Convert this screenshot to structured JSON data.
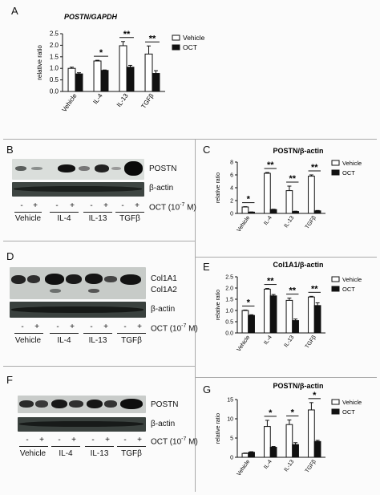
{
  "figure": {
    "panel_a": {
      "letter": "A"
    },
    "panel_b": {
      "letter": "B",
      "blot_labels": [
        "POSTN",
        "β-actin"
      ],
      "treatment_label": "OCT (10",
      "treatment_exp": "-7",
      "treatment_unit": " M)",
      "signs": [
        "-",
        "+",
        "-",
        "+",
        "-",
        "+",
        "-",
        "+"
      ],
      "lane_labels": [
        "Vehicle",
        "IL-4",
        "IL-13",
        "TGFβ"
      ]
    },
    "panel_c": {
      "letter": "C"
    },
    "panel_d": {
      "letter": "D",
      "blot_labels": [
        "Col1A1",
        "Col1A2",
        "β-actin"
      ],
      "treatment_label": "OCT (10",
      "treatment_exp": "-7",
      "treatment_unit": " M)",
      "signs": [
        "-",
        "+",
        "-",
        "+",
        "-",
        "+",
        "-",
        "+"
      ],
      "lane_labels": [
        "Vehicle",
        "IL-4",
        "IL-13",
        "TGFβ"
      ]
    },
    "panel_e": {
      "letter": "E"
    },
    "panel_f": {
      "letter": "F",
      "blot_labels": [
        "POSTN",
        "β-actin"
      ],
      "treatment_label": "OCT (10",
      "treatment_exp": "-7",
      "treatment_unit": " M)",
      "signs": [
        "-",
        "+",
        "-",
        "+",
        "-",
        "+",
        "-",
        "+"
      ],
      "lane_labels": [
        "Vehicle",
        "IL-4",
        "IL-13",
        "TGFβ"
      ]
    },
    "panel_g": {
      "letter": "G"
    }
  },
  "chart_data": [
    {
      "id": "A",
      "type": "bar",
      "title": "POSTN/GAPDH",
      "ylabel": "relative ratio",
      "categories": [
        "Vehicle",
        "IL-4",
        "IL-13",
        "TGFβ"
      ],
      "ylim": [
        0,
        2.5
      ],
      "yticks": [
        "0.0",
        "0.5",
        "1.0",
        "1.5",
        "2.0",
        "2.5"
      ],
      "series": [
        {
          "name": "Vehicle",
          "values": [
            1.0,
            1.32,
            1.98,
            1.62
          ],
          "errors": [
            0.05,
            0.03,
            0.18,
            0.35
          ],
          "color": "#ffffff"
        },
        {
          "name": "OCT",
          "values": [
            0.76,
            0.91,
            1.05,
            0.78
          ],
          "errors": [
            0.05,
            0.02,
            0.08,
            0.12
          ],
          "color": "#111111"
        }
      ],
      "significance": [
        "",
        "*",
        "**",
        "**"
      ],
      "legend": "right"
    },
    {
      "id": "C",
      "type": "bar",
      "title": "POSTN/β-actin",
      "ylabel": "relative ratio",
      "categories": [
        "Vehicle",
        "IL-4",
        "IL-13",
        "TGFβ"
      ],
      "ylim": [
        0,
        8
      ],
      "yticks": [
        "0",
        "2",
        "4",
        "6",
        "8"
      ],
      "series": [
        {
          "name": "Vehicle",
          "values": [
            1.0,
            6.25,
            3.55,
            5.8
          ],
          "errors": [
            0.05,
            0.12,
            0.7,
            0.2
          ],
          "color": "#ffffff"
        },
        {
          "name": "OCT",
          "values": [
            0.2,
            0.6,
            0.3,
            0.4
          ],
          "errors": [
            0.03,
            0.05,
            0.05,
            0.06
          ],
          "color": "#111111"
        }
      ],
      "significance": [
        "*",
        "**",
        "**",
        "**"
      ],
      "legend": "right"
    },
    {
      "id": "E",
      "type": "bar",
      "title": "Col1A1/β-actin",
      "ylabel": "relative ratio",
      "categories": [
        "Vehicle",
        "IL-4",
        "IL-13",
        "TGFβ"
      ],
      "ylim": [
        0,
        2.5
      ],
      "yticks": [
        "0.0",
        "0.5",
        "1.0",
        "1.5",
        "2.0",
        "2.5"
      ],
      "series": [
        {
          "name": "Vehicle",
          "values": [
            1.0,
            1.95,
            1.45,
            1.6
          ],
          "errors": [
            0.02,
            0.03,
            0.1,
            0.03
          ],
          "color": "#ffffff"
        },
        {
          "name": "OCT",
          "values": [
            0.78,
            1.65,
            0.55,
            1.22
          ],
          "errors": [
            0.03,
            0.06,
            0.07,
            0.12
          ],
          "color": "#111111"
        }
      ],
      "significance": [
        "*",
        "**",
        "**",
        "**"
      ],
      "legend": "right"
    },
    {
      "id": "G",
      "type": "bar",
      "title": "POSTN/β-actin",
      "ylabel": "relative ratio",
      "categories": [
        "Vehicle",
        "IL-4",
        "IL-13",
        "TGFβ"
      ],
      "ylim": [
        0,
        15
      ],
      "yticks": [
        "0",
        "5",
        "10",
        "15"
      ],
      "series": [
        {
          "name": "Vehicle",
          "values": [
            1.0,
            8.0,
            8.5,
            12.3
          ],
          "errors": [
            0.1,
            1.6,
            1.2,
            1.9
          ],
          "color": "#ffffff"
        },
        {
          "name": "OCT",
          "values": [
            1.3,
            2.6,
            3.3,
            4.1
          ],
          "errors": [
            0.15,
            0.2,
            0.5,
            0.3
          ],
          "color": "#111111"
        }
      ],
      "significance": [
        "",
        "*",
        "*",
        "*"
      ],
      "legend": "right"
    }
  ]
}
